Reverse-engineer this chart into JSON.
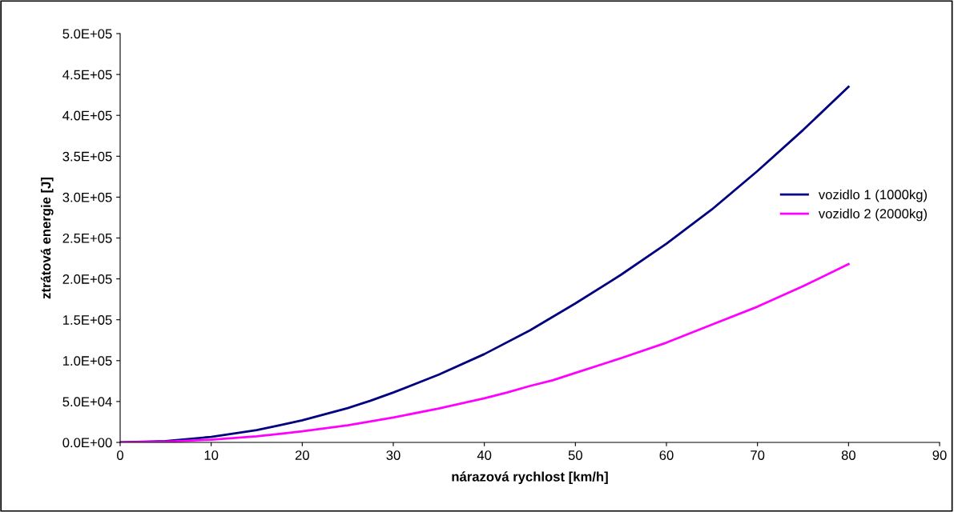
{
  "chart_data": {
    "type": "line",
    "xlabel": "nárazová rychlost [km/h]",
    "ylabel": "ztrátová energie [J]",
    "xlim": [
      0,
      90
    ],
    "xticks": [
      0,
      10,
      20,
      30,
      40,
      50,
      60,
      70,
      80,
      90
    ],
    "ylim": [
      0,
      500000
    ],
    "yticks": [
      {
        "value": 0,
        "label": "0.0E+00"
      },
      {
        "value": 50000,
        "label": "5.0E+04"
      },
      {
        "value": 100000,
        "label": "1.0E+05"
      },
      {
        "value": 150000,
        "label": "1.5E+05"
      },
      {
        "value": 200000,
        "label": "2.0E+05"
      },
      {
        "value": 250000,
        "label": "2.5E+05"
      },
      {
        "value": 300000,
        "label": "3.0E+05"
      },
      {
        "value": 350000,
        "label": "3.5E+05"
      },
      {
        "value": 400000,
        "label": "4.0E+05"
      },
      {
        "value": 450000,
        "label": "4.5E+05"
      },
      {
        "value": 500000,
        "label": "5.0E+05"
      }
    ],
    "grid": false,
    "legend": "right",
    "marker": "none",
    "line_style": "solid",
    "series": [
      {
        "name": "vozidlo 1 (1000kg)",
        "color": "#000080",
        "x": [
          0,
          5,
          10,
          15,
          17.5,
          20,
          25,
          27.5,
          30,
          35,
          40,
          45,
          50,
          55,
          60,
          65,
          70,
          75,
          80
        ],
        "values": [
          0,
          1500,
          6800,
          15000,
          21000,
          27000,
          42000,
          51000,
          61000,
          83000,
          108000,
          137000,
          170000,
          205000,
          243000,
          285000,
          332000,
          382000,
          435000
        ]
      },
      {
        "name": "vozidlo 2 (2000kg)",
        "color": "#ff00ff",
        "x": [
          0,
          5,
          10,
          15,
          17.5,
          20,
          25,
          30,
          35,
          40,
          42.5,
          45,
          47.5,
          50,
          55,
          60,
          65,
          70,
          75,
          80
        ],
        "values": [
          0,
          800,
          3400,
          7500,
          10500,
          13500,
          21000,
          30500,
          41500,
          54000,
          61000,
          69000,
          76000,
          85000,
          103000,
          122000,
          144000,
          166000,
          191000,
          218000
        ]
      }
    ]
  }
}
